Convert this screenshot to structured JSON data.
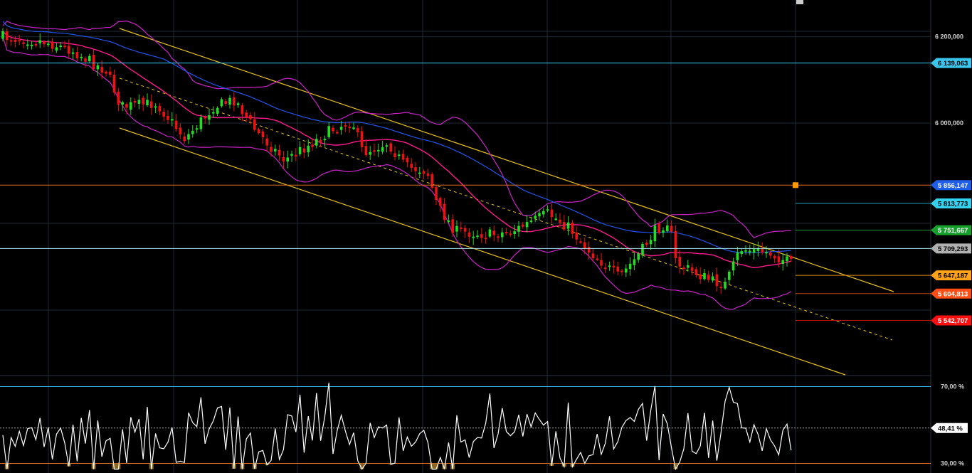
{
  "chart_data": {
    "type": "candlestick",
    "price_axis": {
      "ylim": [
        5415000,
        6285000
      ],
      "ticks": [
        {
          "value": 6200000,
          "label": "6 200,000"
        },
        {
          "value": 6000000,
          "label": "6 000,000"
        }
      ]
    },
    "horizontal_levels": [
      {
        "value": 6139063,
        "label": "6 139,063",
        "line_color": "#33ccff",
        "tag_color": "#39c6ee",
        "text_color": "#000000"
      },
      {
        "value": 5856147,
        "label": "5 856,147",
        "line_color": "#e07020",
        "tag_color": "#1e5ee8",
        "text_color": "#ffffff"
      },
      {
        "value": 5813773,
        "label": "5 813,773",
        "line_color": "#18a0b8",
        "tag_color": "#33d0f0",
        "text_color": "#000000"
      },
      {
        "value": 5751667,
        "label": "5 751,667",
        "line_color": "#1a9a30",
        "tag_color": "#17a02c",
        "text_color": "#ffffff"
      },
      {
        "value": 5709293,
        "label": "5 709,293",
        "line_color": "#b0e8f0",
        "tag_color": "#b0b0b0",
        "text_color": "#000000"
      },
      {
        "value": 5647187,
        "label": "5 647,187",
        "line_color": "#d88a10",
        "tag_color": "#ffa21a",
        "text_color": "#000000"
      },
      {
        "value": 5604813,
        "label": "5 604,813",
        "line_color": "#b84818",
        "tag_color": "#ff4d14",
        "text_color": "#ffffff"
      },
      {
        "value": 5542707,
        "label": "5 542,707",
        "line_color": "#c01010",
        "tag_color": "#ff1010",
        "text_color": "#ffffff"
      }
    ],
    "indicator_axis": {
      "ylim": [
        25,
        75
      ],
      "ticks": [
        {
          "value": 70,
          "label": "70,00 %",
          "line_color": "#33bbee"
        },
        {
          "value": 30,
          "label": "30,00 %",
          "line_color": "#e07020"
        }
      ],
      "current": {
        "value": 48.41,
        "label": "48,41 %"
      }
    },
    "colors": {
      "up_candle": "#22dd22",
      "down_candle": "#ee1111",
      "bollinger_bands": "#cc22cc",
      "moving_average_fast": "#ff1a8c",
      "moving_average_slow": "#2255ee",
      "channel": "#e8c020",
      "oscillator": "#ffffff",
      "oscillator_oversold_fill": "#8a6420",
      "grid": "#1e2a34"
    }
  }
}
